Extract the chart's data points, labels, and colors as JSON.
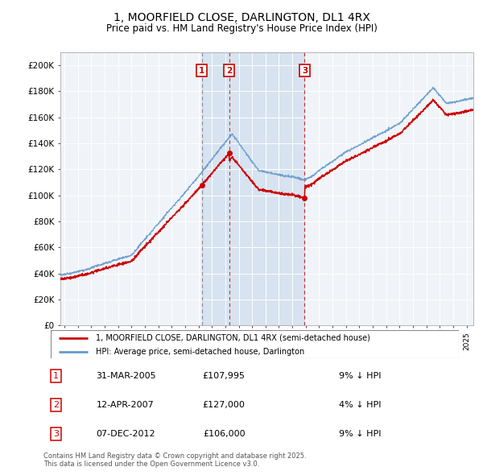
{
  "title": "1, MOORFIELD CLOSE, DARLINGTON, DL1 4RX",
  "subtitle": "Price paid vs. HM Land Registry's House Price Index (HPI)",
  "title_fontsize": 10,
  "subtitle_fontsize": 8.5,
  "ylabel_ticks": [
    "£0",
    "£20K",
    "£40K",
    "£60K",
    "£80K",
    "£100K",
    "£120K",
    "£140K",
    "£160K",
    "£180K",
    "£200K"
  ],
  "ytick_values": [
    0,
    20000,
    40000,
    60000,
    80000,
    100000,
    120000,
    140000,
    160000,
    180000,
    200000
  ],
  "ylim": [
    0,
    210000
  ],
  "xlim_start": 1994.7,
  "xlim_end": 2025.5,
  "purchases": [
    {
      "num": 1,
      "date_label": "31-MAR-2005",
      "price": 107995,
      "pct": "9%",
      "x_year": 2005.25,
      "vline_style": "dashed_gray"
    },
    {
      "num": 2,
      "date_label": "12-APR-2007",
      "price": 127000,
      "pct": "4%",
      "x_year": 2007.28,
      "vline_style": "dashed_red"
    },
    {
      "num": 3,
      "date_label": "07-DEC-2012",
      "price": 106000,
      "pct": "9%",
      "x_year": 2012.92,
      "vline_style": "dashed_red"
    }
  ],
  "legend_line1": "1, MOORFIELD CLOSE, DARLINGTON, DL1 4RX (semi-detached house)",
  "legend_line2": "HPI: Average price, semi-detached house, Darlington",
  "footnote": "Contains HM Land Registry data © Crown copyright and database right 2025.\nThis data is licensed under the Open Government Licence v3.0.",
  "red_color": "#cc0000",
  "blue_color": "#6699cc",
  "shade_color": "#ddeeff",
  "grid_color": "#cccccc",
  "bg_color": "#f0f4f8",
  "table_rows": [
    [
      "1",
      "31-MAR-2005",
      "£107,995",
      "9% ↓ HPI"
    ],
    [
      "2",
      "12-APR-2007",
      "£127,000",
      "4% ↓ HPI"
    ],
    [
      "3",
      "07-DEC-2012",
      "£106,000",
      "9% ↓ HPI"
    ]
  ]
}
